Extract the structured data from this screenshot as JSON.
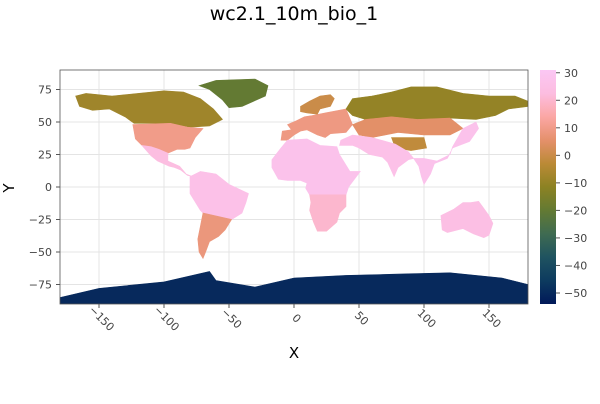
{
  "chart_data": {
    "type": "heatmap",
    "title": "wc2.1_10m_bio_1",
    "xlabel": "X",
    "ylabel": "Y",
    "xlim": [
      -180,
      180
    ],
    "ylim": [
      -90,
      90
    ],
    "x_ticks": [
      -150,
      -100,
      -50,
      0,
      50,
      100,
      150
    ],
    "y_ticks": [
      75,
      50,
      25,
      0,
      -25,
      -50,
      -75
    ],
    "grid": true,
    "colorbar": {
      "range": [
        -54,
        31
      ],
      "ticks": [
        30,
        20,
        10,
        0,
        -10,
        -20,
        -30,
        -40,
        -50
      ],
      "colormap": "batlow",
      "stops": [
        "#011959",
        "#0d3b5f",
        "#1f5360",
        "#3f6b51",
        "#637a33",
        "#8c8223",
        "#bb8a36",
        "#e5906b",
        "#fba7a4",
        "#fcbde0",
        "#fbc7f4"
      ]
    },
    "regions": [
      {
        "name": "Greenland",
        "value": -20
      },
      {
        "name": "Canada",
        "value": -8
      },
      {
        "name": "United States",
        "value": 10
      },
      {
        "name": "Mexico & Central America",
        "value": 23
      },
      {
        "name": "South America north",
        "value": 26
      },
      {
        "name": "South America south",
        "value": 8
      },
      {
        "name": "Europe",
        "value": 9
      },
      {
        "name": "Scandinavia",
        "value": 0
      },
      {
        "name": "Siberia",
        "value": -10
      },
      {
        "name": "Central Asia",
        "value": 5
      },
      {
        "name": "Tibetan Plateau",
        "value": -2
      },
      {
        "name": "South Asia",
        "value": 26
      },
      {
        "name": "Southeast Asia",
        "value": 27
      },
      {
        "name": "Africa north",
        "value": 27
      },
      {
        "name": "Africa south",
        "value": 20
      },
      {
        "name": "Australia",
        "value": 24
      },
      {
        "name": "Antarctica",
        "value": -50
      }
    ]
  }
}
